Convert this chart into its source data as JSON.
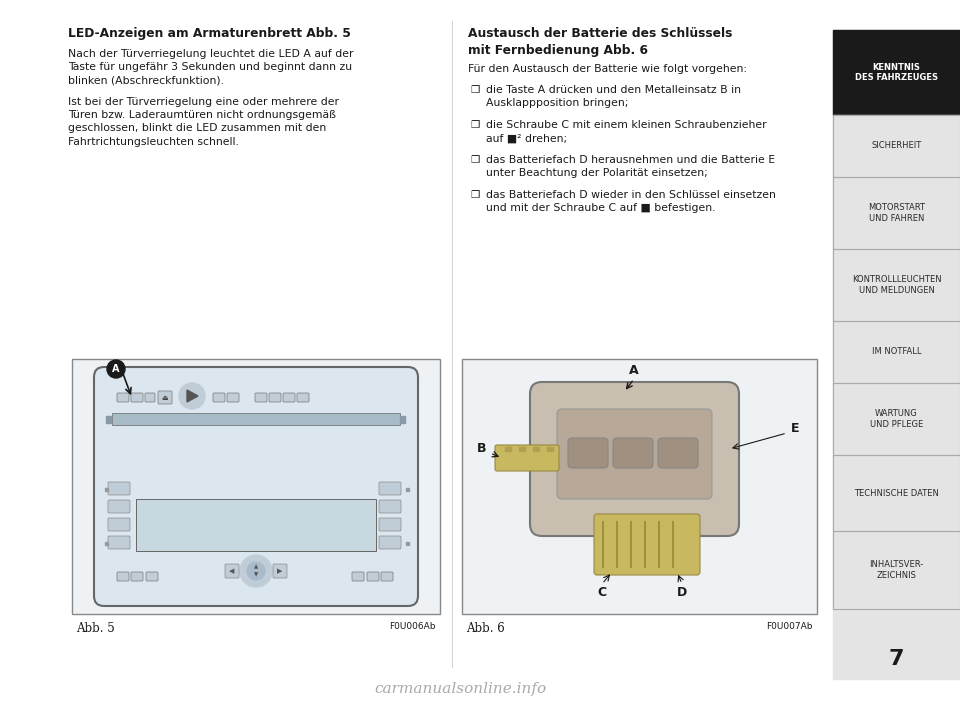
{
  "page_bg": "#ffffff",
  "sidebar_bg": "#e4e4e4",
  "sidebar_active_bg": "#1a1a1a",
  "sidebar_active_text": "#ffffff",
  "sidebar_text": "#2a2a2a",
  "sidebar_items": [
    {
      "label": "KENNTNIS\nDES FAHRZEUGES",
      "active": true
    },
    {
      "label": "SICHERHEIT",
      "active": false
    },
    {
      "label": "MOTORSTART\nUND FAHREN",
      "active": false
    },
    {
      "label": "KONTROLLLEUCHTEN\nUND MELDUNGEN",
      "active": false
    },
    {
      "label": "IM NOTFALL",
      "active": false
    },
    {
      "label": "WARTUNG\nUND PFLEGE",
      "active": false
    },
    {
      "label": "TECHNISCHE DATEN",
      "active": false
    },
    {
      "label": "INHALTSVER-\nZEICHNIS",
      "active": false
    }
  ],
  "page_number": "7",
  "left_title": "LED-Anzeigen am Armaturenbrett Abb. 5",
  "left_para1": "Nach der Türverriegelung leuchtet die LED A auf der\nTaste für ungefähr 3 Sekunden und beginnt dann zu\nblinken (Abschreckfunktion).",
  "left_para2": "Ist bei der Türverriegelung eine oder mehrere der\nTüren bzw. Laderaumtüren nicht ordnungsgemäß\ngeschlossen, blinkt die LED zusammen mit den\nFahrtrichtungsleuchten schnell.",
  "right_title_line1": "Austausch der Batterie des Schlüssels",
  "right_title_line2": "mit Fernbedienung Abb. 6",
  "right_intro": "Für den Austausch der Batterie wie folgt vorgehen:",
  "right_bullets": [
    "die Taste A drücken und den Metalleinsatz B in\nAusklappposition bringen;",
    "die Schraube C mit einem kleinen Schraubenzieher\nauf ■² drehen;",
    "das Batteriefach D herausnehmen und die Batterie E\nunter Beachtung der Polarität einsetzen;",
    "das Batteriefach D wieder in den Schlüssel einsetzen\nund mit der Schraube C auf ■ befestigen."
  ],
  "fig5_caption": "Abb. 5",
  "fig5_code": "F0U006Ab",
  "fig6_caption": "Abb. 6",
  "fig6_code": "F0U007Ab",
  "watermark": "carmanualsonline.info"
}
